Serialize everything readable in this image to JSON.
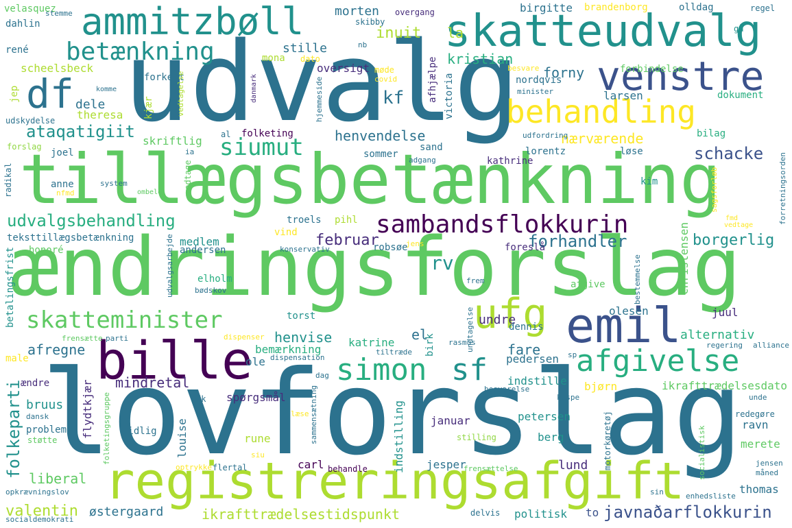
{
  "words": {
    "w1": "lovforslag",
    "w2": "ændringsforslag",
    "w3": "tillægsbetænkning",
    "w4": "udvalg",
    "w5": "registreringsafgift",
    "w6": "skatteudvalg",
    "w7": "ammitzbøll",
    "w8": "venstre",
    "w9": "behandling",
    "w10": "bille",
    "w11": "emil",
    "w12": "df",
    "w13": "simon",
    "w14": "sf",
    "w15": "afgivelse",
    "w16": "ufg",
    "w17": "betænkning",
    "w18": "siumut",
    "w19": "sambandsflokkurin",
    "w20": "skatteminister",
    "w21": "udvalgsbehandling",
    "w22": "ataqatigiit",
    "w23": "javnaðarflokkurin",
    "w24": "ikrafttrædelsestidspunkt",
    "w25": "schacke",
    "w26": "forhandler",
    "w27": "borgerlig",
    "w28": "folkeparti",
    "w29": "valentin",
    "w30": "kf",
    "w31": "inuit",
    "w32": "kristian",
    "w33": "forny",
    "w34": "henvendelse",
    "w35": "nærværende",
    "w36": "februar",
    "w37": "rv",
    "w38": "alternativ",
    "w39": "fare",
    "w40": "henvise",
    "w41": "bemærkning",
    "w42": "afregne",
    "w43": "mindretal",
    "w44": "liberal",
    "w45": "østergaard",
    "w46": "lund",
    "w47": "thomas",
    "w48": "pedersen",
    "w49": "petersen",
    "w50": "ikrafttrædelsesdato",
    "w51": "scheelsbeck",
    "w52": "dele",
    "w53": "skriftlig",
    "w54": "medlem",
    "w55": "andersen",
    "w56": "theresa",
    "w57": "teksttillægsbetænkning",
    "w58": "stille",
    "w59": "morten",
    "w60": "la",
    "w61": "oversigt",
    "w62": "indstille",
    "w63": "undre",
    "w64": "el",
    "w65": "spørgsmål",
    "w66": "bruus",
    "w67": "louise",
    "w68": "flydtkjær",
    "w69": "christensen",
    "w70": "olesen",
    "w71": "juul",
    "w72": "dennis",
    "w73": "katrine",
    "w74": "jesper",
    "w75": "carl",
    "w76": "rune",
    "w77": "berg",
    "w78": "merete",
    "w79": "ravn",
    "w80": "bjørn",
    "w81": "januar",
    "w82": "indstilling",
    "w83": "betalingsfrist",
    "w84": "honoré",
    "w85": "ole",
    "w86": "torst",
    "w87": "elholm",
    "w88": "troels",
    "w89": "robsøe",
    "w90": "foreslå",
    "w91": "vind",
    "w92": "pihl",
    "w93": "politisk",
    "w94": "delvis",
    "w95": "to",
    "w96": "birgitte",
    "w97": "brandenborg",
    "w98": "olldag",
    "w99": "regel",
    "w100": "overgang",
    "w101": "skibby",
    "w102": "velasquez",
    "w103": "stemme",
    "w104": "dahlin",
    "w105": "rené",
    "w106": "mona",
    "w107": "dato",
    "w108": "møde",
    "w109": "covid",
    "w110": "forkert",
    "w111": "komme",
    "w112": "jep",
    "w113": "kjær",
    "w114": "udskydelse",
    "w115": "forslag",
    "w116": "joel",
    "w117": "al",
    "w118": "ia",
    "w119": "anne",
    "w120": "nfmd",
    "w121": "system",
    "w122": "ombele",
    "w123": "modtage",
    "w124": "radikal",
    "w125": "folketing",
    "w126": "sand",
    "w127": "sommer",
    "w128": "adgang",
    "w129": "kathrine",
    "w130": "lorentz",
    "w131": "løse",
    "w132": "bilag",
    "w133": "udfordring",
    "w134": "larsen",
    "w135": "dokument",
    "w136": "minister",
    "w137": "besvare",
    "w138": "forbindelse",
    "w139": "gå",
    "w140": "kim",
    "w141": "sagsforløb",
    "w142": "forretningsorden",
    "w143": "fmd",
    "w144": "vedtage",
    "w145": "konservativ",
    "w146": "jens",
    "w147": "bødskov",
    "w148": "udvalgsarbejde",
    "w149": "frem",
    "w150": "bestemmelse",
    "w151": "afgive",
    "w152": "undtagelse",
    "w153": "birk",
    "w154": "rasmus",
    "w155": "tiltræde",
    "w156": "dispensation",
    "w157": "dispenser",
    "w158": "parti",
    "w159": "frensætte",
    "w160": "male",
    "w161": "ændre",
    "w162": "dansk",
    "w163": "problem",
    "w164": "støtte",
    "w165": "folketingsgruppe",
    "w166": "tidlig",
    "w167": "siu",
    "w168": "optrykke",
    "w169": "flertal",
    "w170": "behandle",
    "w171": "frensættelse",
    "w172": "stilling",
    "w173": "sammensætning",
    "w174": "læse",
    "w175": "dk",
    "w176": "dag",
    "w177": "besvarelse",
    "w178": "kaspe",
    "w179": "motorkøretøj",
    "w180": "redegøre",
    "w181": "unde",
    "w182": "socialistisk",
    "w183": "jensen",
    "w184": "måned",
    "w185": "enhedsliste",
    "w186": "sin",
    "w187": "sp",
    "w188": "regering",
    "w189": "alliance",
    "w190": "opkrævningslov",
    "w191": "socialdemokrati",
    "w192": "nordqvis",
    "w193": "victoria",
    "w194": "afhjælpe",
    "w195": "danmark",
    "w196": "hjemmeside",
    "w197": "vedtagelse",
    "w198": "nb"
  },
  "colors": {
    "c1": "#3b528b",
    "c2": "#2c728e",
    "c3": "#21918c",
    "c4": "#28ae80",
    "c5": "#5ec962",
    "c6": "#addc30",
    "c7": "#fde725",
    "c8": "#472d7b",
    "c9": "#440154",
    "c10": "#90d743"
  }
}
